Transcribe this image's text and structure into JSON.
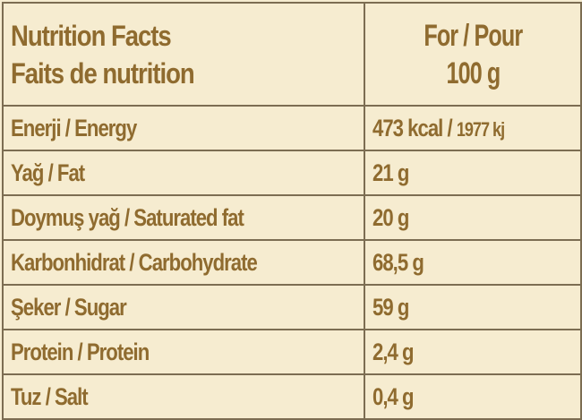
{
  "header": {
    "title_line1": "Nutrition Facts",
    "title_line2": "Faits de nutrition",
    "per_line1": "For / Pour",
    "per_line2": "100 g"
  },
  "rows": [
    {
      "label": "Enerji / Energy",
      "value": "473 kcal /",
      "value_extra": "1977 kj"
    },
    {
      "label": "Yağ / Fat",
      "value": "21 g"
    },
    {
      "label": "Doymuş yağ / Saturated fat",
      "value": "20 g"
    },
    {
      "label": "Karbonhidrat / Carbohydrate",
      "value": "68,5 g"
    },
    {
      "label": "Şeker / Sugar",
      "value": "59 g"
    },
    {
      "label": "Protein / Protein",
      "value": "2,4 g"
    },
    {
      "label": "Tuz / Salt",
      "value": "0,4 g"
    }
  ],
  "colors": {
    "background": "#f6ecd0",
    "text": "#8f6b2f",
    "border": "#7c6d52"
  }
}
